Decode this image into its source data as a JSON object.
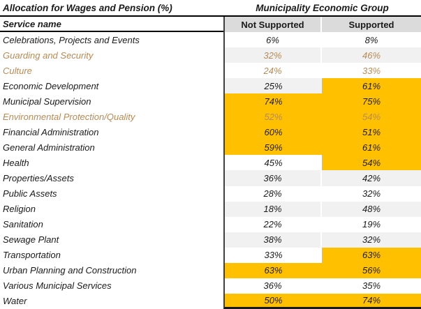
{
  "title": {
    "left": "Allocation for Wages and Pension (%)",
    "right": "Municipality Economic Group"
  },
  "columns": {
    "service": "Service name",
    "not_supported": "Not Supported",
    "supported": "Supported"
  },
  "colors": {
    "highlight": "#ffc000",
    "stripe": "#f1f1f1",
    "header_bg": "#dbdbdb",
    "accent_text": "#b78b55",
    "text": "#1a1a1a"
  },
  "rows": [
    {
      "label": "Celebrations, Projects and Events",
      "not_supported": "6%",
      "supported": "8%",
      "accent": false,
      "hl_ns": false,
      "hl_s": false
    },
    {
      "label": "Guarding and Security",
      "not_supported": "32%",
      "supported": "46%",
      "accent": true,
      "hl_ns": false,
      "hl_s": false
    },
    {
      "label": "Culture",
      "not_supported": "24%",
      "supported": "33%",
      "accent": true,
      "hl_ns": false,
      "hl_s": false
    },
    {
      "label": "Economic Development",
      "not_supported": "25%",
      "supported": "61%",
      "accent": false,
      "hl_ns": false,
      "hl_s": true
    },
    {
      "label": "Municipal Supervision",
      "not_supported": "74%",
      "supported": "75%",
      "accent": false,
      "hl_ns": true,
      "hl_s": true
    },
    {
      "label": "Environmental Protection/Quality",
      "not_supported": "52%",
      "supported": "54%",
      "accent": true,
      "hl_ns": true,
      "hl_s": true
    },
    {
      "label": "Financial Administration",
      "not_supported": "60%",
      "supported": "51%",
      "accent": false,
      "hl_ns": true,
      "hl_s": true
    },
    {
      "label": "General Administration",
      "not_supported": "59%",
      "supported": "61%",
      "accent": false,
      "hl_ns": true,
      "hl_s": true
    },
    {
      "label": "Health",
      "not_supported": "45%",
      "supported": "54%",
      "accent": false,
      "hl_ns": false,
      "hl_s": true
    },
    {
      "label": "Properties/Assets",
      "not_supported": "36%",
      "supported": "42%",
      "accent": false,
      "hl_ns": false,
      "hl_s": false
    },
    {
      "label": "Public Assets",
      "not_supported": "28%",
      "supported": "32%",
      "accent": false,
      "hl_ns": false,
      "hl_s": false
    },
    {
      "label": "Religion",
      "not_supported": "18%",
      "supported": "48%",
      "accent": false,
      "hl_ns": false,
      "hl_s": false
    },
    {
      "label": "Sanitation",
      "not_supported": "22%",
      "supported": "19%",
      "accent": false,
      "hl_ns": false,
      "hl_s": false
    },
    {
      "label": "Sewage Plant",
      "not_supported": "38%",
      "supported": "32%",
      "accent": false,
      "hl_ns": false,
      "hl_s": false
    },
    {
      "label": "Transportation",
      "not_supported": "33%",
      "supported": "63%",
      "accent": false,
      "hl_ns": false,
      "hl_s": true
    },
    {
      "label": "Urban Planning and Construction",
      "not_supported": "63%",
      "supported": "56%",
      "accent": false,
      "hl_ns": true,
      "hl_s": true
    },
    {
      "label": "Various Municipal Services",
      "not_supported": "36%",
      "supported": "35%",
      "accent": false,
      "hl_ns": false,
      "hl_s": false
    },
    {
      "label": "Water",
      "not_supported": "50%",
      "supported": "74%",
      "accent": false,
      "hl_ns": true,
      "hl_s": true
    }
  ],
  "chart_data": {
    "type": "table",
    "title": "Allocation for Wages and Pension (%)",
    "group_header": "Municipality Economic Group",
    "columns": [
      "Service name",
      "Not Supported",
      "Supported"
    ],
    "rows": [
      [
        "Celebrations, Projects and Events",
        6,
        8
      ],
      [
        "Guarding and Security",
        32,
        46
      ],
      [
        "Culture",
        24,
        33
      ],
      [
        "Economic Development",
        25,
        61
      ],
      [
        "Municipal Supervision",
        74,
        75
      ],
      [
        "Environmental Protection/Quality",
        52,
        54
      ],
      [
        "Financial Administration",
        60,
        51
      ],
      [
        "General Administration",
        59,
        61
      ],
      [
        "Health",
        45,
        54
      ],
      [
        "Properties/Assets",
        36,
        42
      ],
      [
        "Public Assets",
        28,
        32
      ],
      [
        "Religion",
        18,
        48
      ],
      [
        "Sanitation",
        22,
        19
      ],
      [
        "Sewage Plant",
        38,
        32
      ],
      [
        "Transportation",
        33,
        63
      ],
      [
        "Urban Planning and Construction",
        63,
        56
      ],
      [
        "Various Municipal Services",
        36,
        35
      ],
      [
        "Water",
        50,
        74
      ]
    ],
    "units": "%",
    "notes": "Cells with values highlighted in gold (#ffc000); three service rows rendered in gold-brown accent text"
  }
}
